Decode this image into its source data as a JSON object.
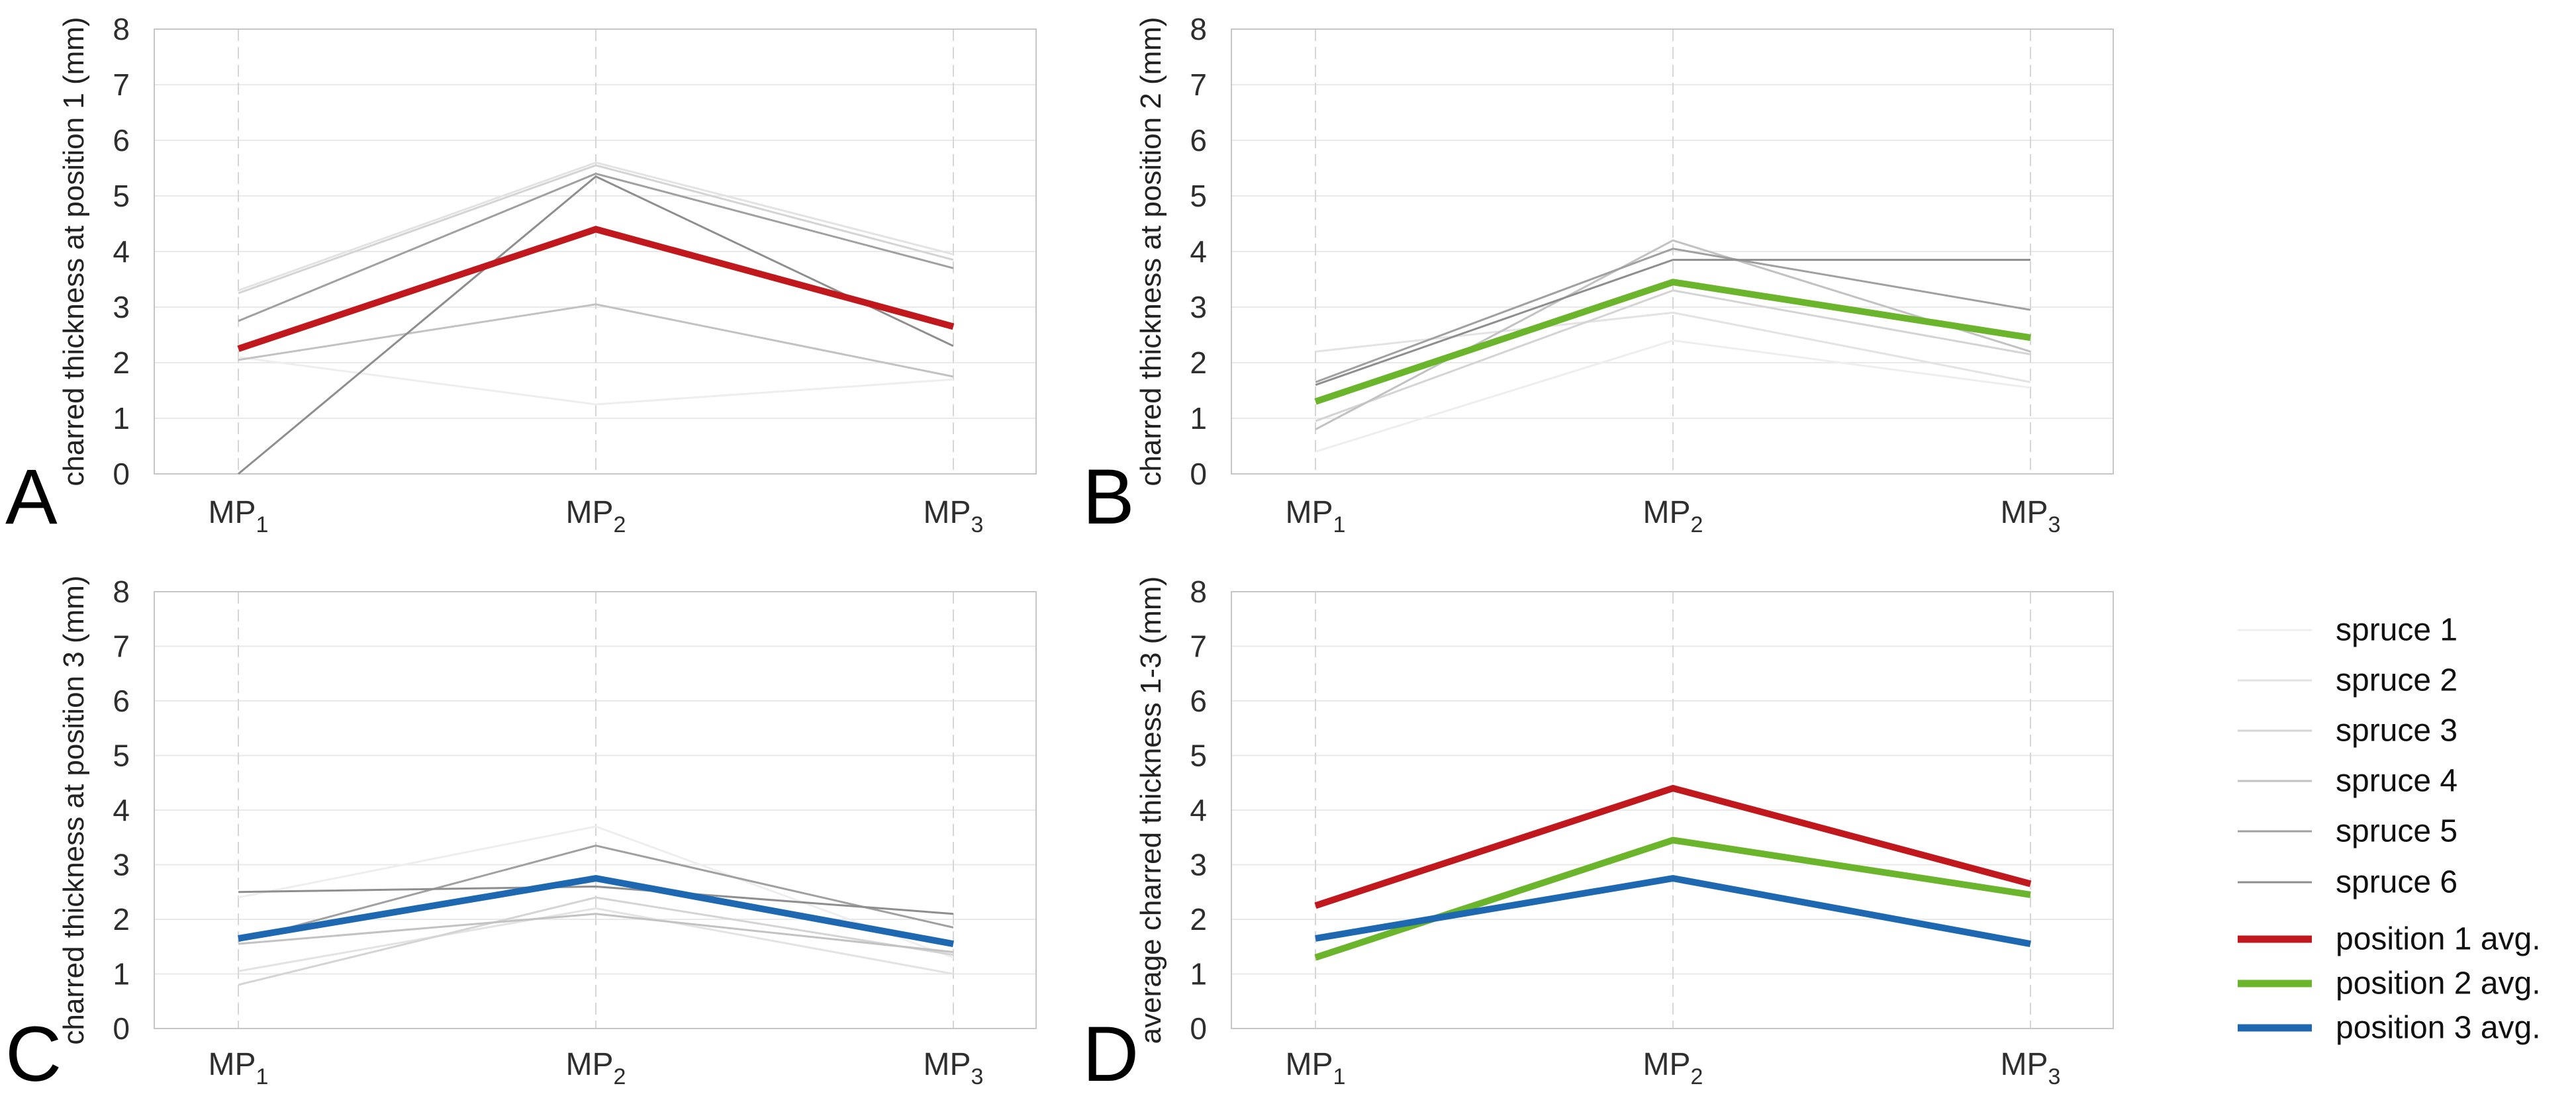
{
  "figure": {
    "background": "#ffffff",
    "panel_labels": [
      "A",
      "B",
      "C",
      "D"
    ]
  },
  "colors": {
    "position1_avg": "#c1181e",
    "position2_avg": "#6ab52c",
    "position3_avg": "#1e68b2",
    "gridline": "#e9e9e9",
    "mp_gridline": "#d6d6d6",
    "plot_border": "#c6c6c6",
    "tick_text": "#2e2e2e",
    "spruce_shades": [
      "#eeeeee",
      "#e3e3e3",
      "#d4d4d4",
      "#c2c2c2",
      "#a0a0a0",
      "#8e8e8e"
    ]
  },
  "legend": {
    "position": "right",
    "items": [
      {
        "label": "spruce 1",
        "color": "#eeeeee",
        "thick": false
      },
      {
        "label": "spruce 2",
        "color": "#e3e3e3",
        "thick": false
      },
      {
        "label": "spruce 3",
        "color": "#d4d4d4",
        "thick": false
      },
      {
        "label": "spruce 4",
        "color": "#c2c2c2",
        "thick": false
      },
      {
        "label": "spruce 5",
        "color": "#a0a0a0",
        "thick": false
      },
      {
        "label": "spruce 6",
        "color": "#8e8e8e",
        "thick": false
      },
      {
        "label": "position 1 avg.",
        "color": "#c1181e",
        "thick": true
      },
      {
        "label": "position 2 avg.",
        "color": "#6ab52c",
        "thick": true
      },
      {
        "label": "position 3 avg.",
        "color": "#1e68b2",
        "thick": true
      }
    ]
  },
  "chart_data": [
    {
      "type": "line",
      "panel_label": "A",
      "ylabel": "charred thickness at position 1 (mm)",
      "xlabel": "",
      "ylim": [
        0,
        8
      ],
      "yticks": [
        0,
        1,
        2,
        3,
        4,
        5,
        6,
        7,
        8
      ],
      "grid": true,
      "categories": [
        {
          "base": "MP",
          "sub": "1"
        },
        {
          "base": "MP",
          "sub": "2"
        },
        {
          "base": "MP",
          "sub": "3"
        }
      ],
      "series": [
        {
          "name": "spruce 1",
          "color": "#eeeeee",
          "width": 3,
          "values": [
            2.1,
            1.25,
            1.7
          ]
        },
        {
          "name": "spruce 2",
          "color": "#e3e3e3",
          "width": 3,
          "values": [
            3.3,
            5.6,
            3.95
          ]
        },
        {
          "name": "spruce 3",
          "color": "#d4d4d4",
          "width": 3,
          "values": [
            3.25,
            5.55,
            3.85
          ]
        },
        {
          "name": "spruce 4",
          "color": "#c2c2c2",
          "width": 3,
          "values": [
            2.05,
            3.05,
            1.75
          ]
        },
        {
          "name": "spruce 5",
          "color": "#a0a0a0",
          "width": 3,
          "values": [
            2.75,
            5.4,
            3.7
          ]
        },
        {
          "name": "spruce 6",
          "color": "#8e8e8e",
          "width": 3,
          "values": [
            0.0,
            5.35,
            2.3
          ]
        },
        {
          "name": "position 1 avg.",
          "color": "#c1181e",
          "width": 10,
          "values": [
            2.25,
            4.4,
            2.65
          ]
        }
      ]
    },
    {
      "type": "line",
      "panel_label": "B",
      "ylabel": "charred thickness at position 2 (mm)",
      "xlabel": "",
      "ylim": [
        0,
        8
      ],
      "yticks": [
        0,
        1,
        2,
        3,
        4,
        5,
        6,
        7,
        8
      ],
      "grid": true,
      "categories": [
        {
          "base": "MP",
          "sub": "1"
        },
        {
          "base": "MP",
          "sub": "2"
        },
        {
          "base": "MP",
          "sub": "3"
        }
      ],
      "series": [
        {
          "name": "spruce 1",
          "color": "#eeeeee",
          "width": 3,
          "values": [
            0.4,
            2.4,
            1.55
          ]
        },
        {
          "name": "spruce 2",
          "color": "#e3e3e3",
          "width": 3,
          "values": [
            2.2,
            2.9,
            1.65
          ]
        },
        {
          "name": "spruce 3",
          "color": "#d4d4d4",
          "width": 3,
          "values": [
            0.95,
            3.3,
            2.15
          ]
        },
        {
          "name": "spruce 4",
          "color": "#c2c2c2",
          "width": 3,
          "values": [
            0.8,
            4.2,
            2.2
          ]
        },
        {
          "name": "spruce 5",
          "color": "#a0a0a0",
          "width": 3,
          "values": [
            1.65,
            4.05,
            2.95
          ]
        },
        {
          "name": "spruce 6",
          "color": "#8e8e8e",
          "width": 3,
          "values": [
            1.6,
            3.85,
            3.85
          ]
        },
        {
          "name": "position 2 avg.",
          "color": "#6ab52c",
          "width": 10,
          "values": [
            1.3,
            3.45,
            2.45
          ]
        }
      ]
    },
    {
      "type": "line",
      "panel_label": "C",
      "ylabel": "charred thickness at position 3 (mm)",
      "xlabel": "",
      "ylim": [
        0,
        8
      ],
      "yticks": [
        0,
        1,
        2,
        3,
        4,
        5,
        6,
        7,
        8
      ],
      "grid": true,
      "categories": [
        {
          "base": "MP",
          "sub": "1"
        },
        {
          "base": "MP",
          "sub": "2"
        },
        {
          "base": "MP",
          "sub": "3"
        }
      ],
      "series": [
        {
          "name": "spruce 1",
          "color": "#eeeeee",
          "width": 3,
          "values": [
            2.4,
            3.7,
            1.3
          ]
        },
        {
          "name": "spruce 2",
          "color": "#e3e3e3",
          "width": 3,
          "values": [
            1.05,
            2.2,
            1.0
          ]
        },
        {
          "name": "spruce 3",
          "color": "#d4d4d4",
          "width": 3,
          "values": [
            0.8,
            2.4,
            1.35
          ]
        },
        {
          "name": "spruce 4",
          "color": "#c2c2c2",
          "width": 3,
          "values": [
            1.55,
            2.1,
            1.4
          ]
        },
        {
          "name": "spruce 5",
          "color": "#a0a0a0",
          "width": 3,
          "values": [
            1.6,
            3.35,
            1.85
          ]
        },
        {
          "name": "spruce 6",
          "color": "#8e8e8e",
          "width": 3,
          "values": [
            2.5,
            2.6,
            2.1
          ]
        },
        {
          "name": "position 3 avg.",
          "color": "#1e68b2",
          "width": 10,
          "values": [
            1.65,
            2.75,
            1.55
          ]
        }
      ]
    },
    {
      "type": "line",
      "panel_label": "D",
      "ylabel": "average charred thickness 1-3 (mm)",
      "xlabel": "",
      "ylim": [
        0,
        8
      ],
      "yticks": [
        0,
        1,
        2,
        3,
        4,
        5,
        6,
        7,
        8
      ],
      "grid": true,
      "categories": [
        {
          "base": "MP",
          "sub": "1"
        },
        {
          "base": "MP",
          "sub": "2"
        },
        {
          "base": "MP",
          "sub": "3"
        }
      ],
      "series": [
        {
          "name": "position 1 avg.",
          "color": "#c1181e",
          "width": 10,
          "values": [
            2.25,
            4.4,
            2.65
          ]
        },
        {
          "name": "position 2 avg.",
          "color": "#6ab52c",
          "width": 10,
          "values": [
            1.3,
            3.45,
            2.45
          ]
        },
        {
          "name": "position 3 avg.",
          "color": "#1e68b2",
          "width": 10,
          "values": [
            1.65,
            2.75,
            1.55
          ]
        }
      ]
    }
  ]
}
